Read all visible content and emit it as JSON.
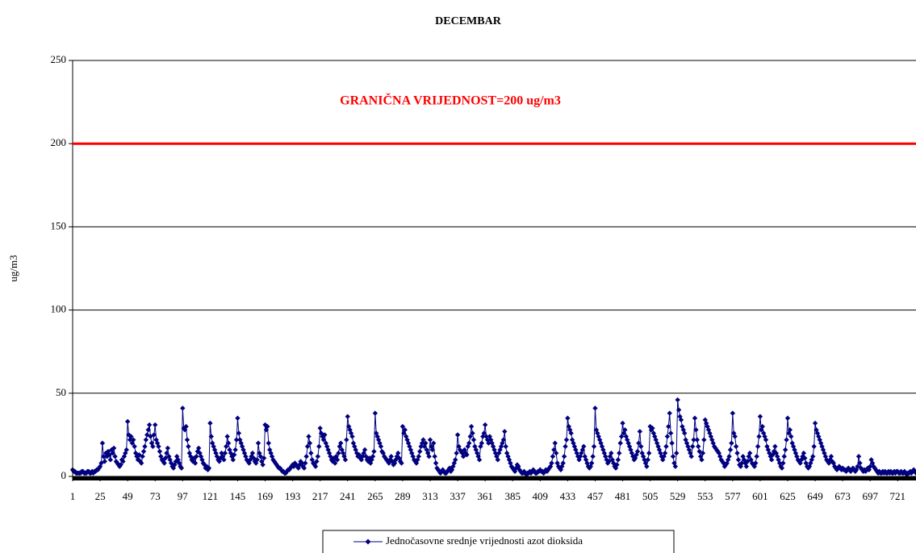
{
  "chart_data": {
    "type": "line",
    "title": "DECEMBAR",
    "ylabel": "ug/m3",
    "threshold": {
      "value": 200,
      "label": "GRANIČNA VRIJEDNOST=200 ug/m3",
      "color": "#ff0000"
    },
    "xlim": [
      1,
      737
    ],
    "xticks": [
      1,
      25,
      49,
      73,
      97,
      121,
      145,
      169,
      193,
      217,
      241,
      265,
      289,
      313,
      337,
      361,
      385,
      409,
      433,
      457,
      481,
      505,
      529,
      553,
      577,
      601,
      625,
      649,
      673,
      697,
      721
    ],
    "ylim": [
      0,
      250
    ],
    "yticks": [
      0,
      50,
      100,
      150,
      200,
      250
    ],
    "grid": true,
    "legend": "bottom",
    "x": [
      1,
      2,
      3,
      4,
      5,
      6,
      7,
      8,
      9,
      10,
      11,
      12,
      13,
      14,
      15,
      16,
      17,
      18,
      19,
      20,
      21,
      22,
      23,
      24,
      25,
      26,
      27,
      28,
      29,
      30,
      31,
      32,
      33,
      34,
      35,
      36,
      37,
      38,
      39,
      40,
      41,
      42,
      43,
      44,
      45,
      46,
      47,
      48,
      49,
      50,
      51,
      52,
      53,
      54,
      55,
      56,
      57,
      58,
      59,
      60,
      61,
      62,
      63,
      64,
      65,
      66,
      67,
      68,
      69,
      70,
      71,
      72,
      73,
      74,
      75,
      76,
      77,
      78,
      79,
      80,
      81,
      82,
      83,
      84,
      85,
      86,
      87,
      88,
      89,
      90,
      91,
      92,
      93,
      94,
      95,
      96,
      97,
      98,
      99,
      100,
      101,
      102,
      103,
      104,
      105,
      106,
      107,
      108,
      109,
      110,
      111,
      112,
      113,
      114,
      115,
      116,
      117,
      118,
      119,
      120,
      121,
      122,
      123,
      124,
      125,
      126,
      127,
      128,
      129,
      130,
      131,
      132,
      133,
      134,
      135,
      136,
      137,
      138,
      139,
      140,
      141,
      142,
      143,
      144,
      145,
      146,
      147,
      148,
      149,
      150,
      151,
      152,
      153,
      154,
      155,
      156,
      157,
      158,
      159,
      160,
      161,
      162,
      163,
      164,
      165,
      166,
      167,
      168,
      169,
      170,
      171,
      172,
      173,
      174,
      175,
      176,
      177,
      178,
      179,
      180,
      181,
      182,
      183,
      184,
      185,
      186,
      187,
      188,
      189,
      190,
      191,
      192,
      193,
      194,
      195,
      196,
      197,
      198,
      199,
      200,
      201,
      202,
      203,
      204,
      205,
      206,
      207,
      208,
      209,
      210,
      211,
      212,
      213,
      214,
      215,
      216,
      217,
      218,
      219,
      220,
      221,
      222,
      223,
      224,
      225,
      226,
      227,
      228,
      229,
      230,
      231,
      232,
      233,
      234,
      235,
      236,
      237,
      238,
      239,
      240,
      241,
      242,
      243,
      244,
      245,
      246,
      247,
      248,
      249,
      250,
      251,
      252,
      253,
      254,
      255,
      256,
      257,
      258,
      259,
      260,
      261,
      262,
      263,
      264,
      265,
      266,
      267,
      268,
      269,
      270,
      271,
      272,
      273,
      274,
      275,
      276,
      277,
      278,
      279,
      280,
      281,
      282,
      283,
      284,
      285,
      286,
      287,
      288,
      289,
      290,
      291,
      292,
      293,
      294,
      295,
      296,
      297,
      298,
      299,
      300,
      301,
      302,
      303,
      304,
      305,
      306,
      307,
      308,
      309,
      310,
      311,
      312,
      313,
      314,
      315,
      316,
      317,
      318,
      319,
      320,
      321,
      322,
      323,
      324,
      325,
      326,
      327,
      328,
      329,
      330,
      331,
      332,
      333,
      334,
      335,
      336,
      337,
      338,
      339,
      340,
      341,
      342,
      343,
      344,
      345,
      346,
      347,
      348,
      349,
      350,
      351,
      352,
      353,
      354,
      355,
      356,
      357,
      358,
      359,
      360,
      361,
      362,
      363,
      364,
      365,
      366,
      367,
      368,
      369,
      370,
      371,
      372,
      373,
      374,
      375,
      376,
      377,
      378,
      379,
      380,
      381,
      382,
      383,
      384,
      385,
      386,
      387,
      388,
      389,
      390,
      391,
      392,
      393,
      394,
      395,
      396,
      397,
      398,
      399,
      400,
      401,
      402,
      403,
      404,
      405,
      406,
      407,
      408,
      409,
      410,
      411,
      412,
      413,
      414,
      415,
      416,
      417,
      418,
      419,
      420,
      421,
      422,
      423,
      424,
      425,
      426,
      427,
      428,
      429,
      430,
      431,
      432,
      433,
      434,
      435,
      436,
      437,
      438,
      439,
      440,
      441,
      442,
      443,
      444,
      445,
      446,
      447,
      448,
      449,
      450,
      451,
      452,
      453,
      454,
      455,
      456,
      457,
      458,
      459,
      460,
      461,
      462,
      463,
      464,
      465,
      466,
      467,
      468,
      469,
      470,
      471,
      472,
      473,
      474,
      475,
      476,
      477,
      478,
      479,
      480,
      481,
      482,
      483,
      484,
      485,
      486,
      487,
      488,
      489,
      490,
      491,
      492,
      493,
      494,
      495,
      496,
      497,
      498,
      499,
      500,
      501,
      502,
      503,
      504,
      505,
      506,
      507,
      508,
      509,
      510,
      511,
      512,
      513,
      514,
      515,
      516,
      517,
      518,
      519,
      520,
      521,
      522,
      523,
      524,
      525,
      526,
      527,
      528,
      529,
      530,
      531,
      532,
      533,
      534,
      535,
      536,
      537,
      538,
      539,
      540,
      541,
      542,
      543,
      544,
      545,
      546,
      547,
      548,
      549,
      550,
      551,
      552,
      553,
      554,
      555,
      556,
      557,
      558,
      559,
      560,
      561,
      562,
      563,
      564,
      565,
      566,
      567,
      568,
      569,
      570,
      571,
      572,
      573,
      574,
      575,
      576,
      577,
      578,
      579,
      580,
      581,
      582,
      583,
      584,
      585,
      586,
      587,
      588,
      589,
      590,
      591,
      592,
      593,
      594,
      595,
      596,
      597,
      598,
      599,
      600,
      601,
      602,
      603,
      604,
      605,
      606,
      607,
      608,
      609,
      610,
      611,
      612,
      613,
      614,
      615,
      616,
      617,
      618,
      619,
      620,
      621,
      622,
      623,
      624,
      625,
      626,
      627,
      628,
      629,
      630,
      631,
      632,
      633,
      634,
      635,
      636,
      637,
      638,
      639,
      640,
      641,
      642,
      643,
      644,
      645,
      646,
      647,
      648,
      649,
      650,
      651,
      652,
      653,
      654,
      655,
      656,
      657,
      658,
      659,
      660,
      661,
      662,
      663,
      664,
      665,
      666,
      667,
      668,
      669,
      670,
      671,
      672,
      673,
      674,
      675,
      676,
      677,
      678,
      679,
      680,
      681,
      682,
      683,
      684,
      685,
      686,
      687,
      688,
      689,
      690,
      691,
      692,
      693,
      694,
      695,
      696,
      697,
      698,
      699,
      700,
      701,
      702,
      703,
      704,
      705,
      706,
      707,
      708,
      709,
      710,
      711,
      712,
      713,
      714,
      715,
      716,
      717,
      718,
      719,
      720,
      721,
      722,
      723,
      724,
      725,
      726,
      727,
      728,
      729,
      730,
      731,
      732,
      733,
      734,
      735,
      736,
      737,
      738,
      739,
      740,
      741,
      742,
      743,
      744
    ],
    "series": [
      {
        "name": "Jednočasovne srednje vrijednosti azot dioksida",
        "color": "#000080",
        "values": [
          4,
          3,
          3,
          2,
          2,
          2,
          2,
          2,
          3,
          3,
          2,
          2,
          2,
          3,
          3,
          2,
          2,
          3,
          2,
          3,
          3,
          4,
          4,
          5,
          6,
          8,
          20,
          12,
          9,
          14,
          12,
          15,
          13,
          10,
          16,
          14,
          17,
          12,
          9,
          8,
          7,
          6,
          7,
          10,
          9,
          12,
          14,
          16,
          33,
          25,
          22,
          24,
          20,
          22,
          18,
          14,
          12,
          10,
          13,
          9,
          8,
          12,
          15,
          18,
          22,
          25,
          28,
          31,
          24,
          20,
          18,
          25,
          31,
          22,
          20,
          18,
          15,
          12,
          10,
          9,
          8,
          11,
          14,
          17,
          12,
          10,
          8,
          6,
          5,
          7,
          9,
          12,
          10,
          8,
          6,
          5,
          41,
          29,
          28,
          30,
          22,
          18,
          14,
          12,
          10,
          9,
          11,
          8,
          12,
          15,
          17,
          14,
          12,
          10,
          8,
          7,
          5,
          6,
          4,
          5,
          32,
          24,
          20,
          18,
          16,
          14,
          12,
          10,
          9,
          11,
          14,
          12,
          10,
          14,
          18,
          24,
          20,
          16,
          14,
          12,
          10,
          13,
          16,
          22,
          35,
          26,
          22,
          20,
          18,
          16,
          14,
          12,
          10,
          9,
          8,
          10,
          12,
          14,
          11,
          9,
          8,
          10,
          20,
          14,
          12,
          9,
          7,
          11,
          31,
          28,
          30,
          20,
          16,
          14,
          12,
          10,
          9,
          8,
          7,
          6,
          5,
          5,
          4,
          3,
          3,
          2,
          2,
          3,
          4,
          4,
          5,
          6,
          7,
          6,
          8,
          7,
          6,
          5,
          7,
          9,
          8,
          6,
          5,
          8,
          12,
          18,
          24,
          20,
          14,
          10,
          8,
          7,
          6,
          9,
          12,
          18,
          29,
          26,
          24,
          22,
          25,
          20,
          18,
          16,
          14,
          12,
          10,
          9,
          11,
          8,
          12,
          10,
          14,
          18,
          20,
          16,
          14,
          12,
          10,
          22,
          36,
          30,
          28,
          26,
          24,
          20,
          18,
          16,
          14,
          12,
          13,
          11,
          10,
          12,
          14,
          16,
          12,
          10,
          9,
          11,
          8,
          10,
          12,
          15,
          38,
          26,
          24,
          22,
          20,
          18,
          15,
          14,
          12,
          11,
          10,
          9,
          8,
          10,
          12,
          9,
          7,
          8,
          10,
          12,
          14,
          11,
          9,
          8,
          30,
          26,
          28,
          24,
          22,
          20,
          18,
          16,
          14,
          12,
          10,
          9,
          8,
          10,
          12,
          15,
          18,
          20,
          22,
          18,
          20,
          16,
          14,
          12,
          22,
          18,
          16,
          20,
          12,
          8,
          5,
          4,
          3,
          2,
          3,
          4,
          3,
          2,
          2,
          3,
          4,
          5,
          3,
          4,
          6,
          8,
          10,
          14,
          25,
          18,
          16,
          15,
          14,
          12,
          16,
          14,
          13,
          18,
          20,
          24,
          30,
          26,
          22,
          18,
          16,
          14,
          12,
          10,
          18,
          20,
          24,
          26,
          31,
          24,
          22,
          20,
          24,
          22,
          20,
          18,
          16,
          14,
          12,
          10,
          14,
          16,
          18,
          20,
          22,
          27,
          18,
          14,
          12,
          10,
          8,
          6,
          5,
          4,
          3,
          5,
          7,
          6,
          4,
          3,
          2,
          2,
          3,
          2,
          1,
          2,
          2,
          3,
          2,
          3,
          4,
          3,
          2,
          2,
          3,
          3,
          4,
          3,
          3,
          2,
          3,
          4,
          3,
          4,
          5,
          6,
          8,
          12,
          16,
          20,
          14,
          8,
          6,
          5,
          4,
          6,
          8,
          12,
          18,
          22,
          35,
          30,
          28,
          26,
          22,
          20,
          18,
          16,
          14,
          12,
          10,
          12,
          14,
          16,
          18,
          12,
          10,
          8,
          6,
          5,
          6,
          8,
          12,
          18,
          41,
          28,
          26,
          24,
          22,
          20,
          18,
          16,
          14,
          12,
          10,
          8,
          9,
          12,
          14,
          10,
          8,
          6,
          5,
          7,
          10,
          14,
          20,
          24,
          32,
          26,
          28,
          24,
          22,
          20,
          18,
          16,
          14,
          12,
          10,
          11,
          13,
          15,
          20,
          27,
          18,
          14,
          12,
          10,
          8,
          6,
          10,
          14,
          30,
          28,
          29,
          26,
          24,
          22,
          20,
          18,
          16,
          14,
          12,
          10,
          12,
          14,
          18,
          24,
          30,
          38,
          26,
          20,
          12,
          8,
          6,
          14,
          46,
          40,
          36,
          34,
          30,
          28,
          26,
          22,
          20,
          18,
          16,
          14,
          12,
          18,
          22,
          35,
          28,
          22,
          18,
          15,
          12,
          10,
          14,
          22,
          34,
          32,
          30,
          28,
          26,
          24,
          22,
          20,
          18,
          17,
          16,
          15,
          14,
          12,
          10,
          9,
          8,
          6,
          7,
          8,
          10,
          12,
          16,
          20,
          38,
          26,
          24,
          18,
          14,
          10,
          7,
          6,
          8,
          12,
          10,
          8,
          6,
          9,
          12,
          14,
          10,
          8,
          7,
          6,
          8,
          12,
          18,
          24,
          36,
          28,
          30,
          26,
          24,
          22,
          18,
          16,
          14,
          12,
          10,
          13,
          15,
          18,
          14,
          12,
          10,
          8,
          6,
          5,
          8,
          12,
          16,
          22,
          35,
          26,
          28,
          24,
          20,
          18,
          16,
          14,
          12,
          10,
          9,
          8,
          10,
          12,
          14,
          11,
          8,
          6,
          5,
          6,
          8,
          10,
          12,
          18,
          32,
          28,
          26,
          24,
          22,
          20,
          18,
          16,
          14,
          12,
          10,
          9,
          8,
          10,
          12,
          9,
          8,
          6,
          5,
          4,
          5,
          6,
          5,
          4,
          5,
          4,
          4,
          3,
          4,
          5,
          4,
          3,
          4,
          5,
          4,
          3,
          4,
          6,
          12,
          8,
          5,
          4,
          3,
          4,
          3,
          4,
          5,
          4,
          6,
          10,
          8,
          6,
          5,
          4,
          3,
          2,
          3,
          2,
          2,
          3,
          2,
          3,
          2,
          2,
          3,
          2,
          3,
          2,
          2,
          3,
          2,
          3,
          3,
          2,
          2,
          3,
          2,
          2,
          3,
          2,
          1,
          2,
          2,
          3,
          2,
          3,
          4,
          3,
          2,
          2,
          3,
          2,
          3,
          4,
          3,
          3
        ]
      }
    ]
  }
}
